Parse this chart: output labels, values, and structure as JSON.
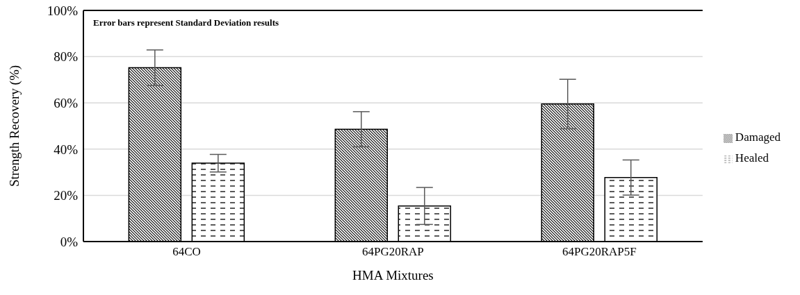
{
  "chart_data": {
    "type": "bar",
    "xlabel": "HMA Mixtures",
    "ylabel": "Strength Recovery (%)",
    "annotations": [
      "Error bars represent Standard Deviation results"
    ],
    "categories": [
      "64CO",
      "64PG20RAP",
      "64PG20RAP5F"
    ],
    "series": [
      {
        "name": "Damaged",
        "color": "#000000",
        "values": [
          75.2,
          48.6,
          59.5
        ],
        "errors": [
          7.7,
          7.6,
          10.7
        ]
      },
      {
        "name": "Healed",
        "color": "#000000",
        "values": [
          33.9,
          15.4,
          27.7
        ],
        "errors": [
          3.8,
          8.0,
          7.6
        ]
      }
    ],
    "ylim": [
      0,
      100
    ],
    "yticks": [
      {
        "value": 0,
        "label": "0%"
      },
      {
        "value": 20,
        "label": "20%"
      },
      {
        "value": 40,
        "label": "40%"
      },
      {
        "value": 60,
        "label": "60%"
      },
      {
        "value": 80,
        "label": "80%"
      },
      {
        "value": 100,
        "label": "100%"
      }
    ],
    "grid": "y",
    "legend": "right"
  }
}
